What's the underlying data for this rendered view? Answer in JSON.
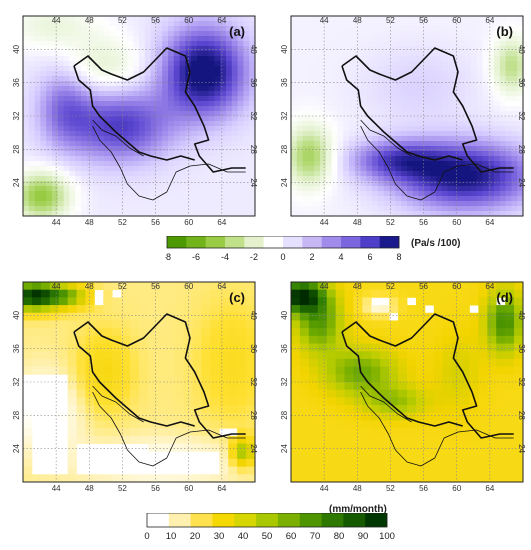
{
  "panels": [
    {
      "label": "(a)",
      "field": "omega_a"
    },
    {
      "label": "(b)",
      "field": "omega_b"
    },
    {
      "label": "(c)",
      "field": "precip_c"
    },
    {
      "label": "(d)",
      "field": "precip_d"
    }
  ],
  "lon_ticks": [
    "44",
    "48",
    "52",
    "56",
    "60",
    "64"
  ],
  "lat_ticks": [
    "40",
    "36",
    "32",
    "28",
    "24"
  ],
  "colorbars": [
    {
      "unit": "(Pa/s /100)",
      "ticks": [
        "-8",
        "-6",
        "-4",
        "-2",
        "0",
        "2",
        "4",
        "6",
        "8"
      ],
      "colors": [
        "#4d9900",
        "#72b21a",
        "#99cc44",
        "#c0e08a",
        "#e4f1cc",
        "#ffffff",
        "#e6e0ff",
        "#c7b8f5",
        "#a28ceb",
        "#7c66dd",
        "#4d3fc7",
        "#1a1a8c"
      ]
    },
    {
      "unit": "(mm/month)",
      "ticks": [
        "0",
        "10",
        "20",
        "30",
        "40",
        "50",
        "60",
        "70",
        "80",
        "90",
        "100"
      ],
      "colors": [
        "#ffffff",
        "#fff0b0",
        "#ffe04d",
        "#f5d800",
        "#d6d600",
        "#a9c800",
        "#7cb000",
        "#4f9500",
        "#2e7a00",
        "#165a00",
        "#003600"
      ]
    }
  ]
}
